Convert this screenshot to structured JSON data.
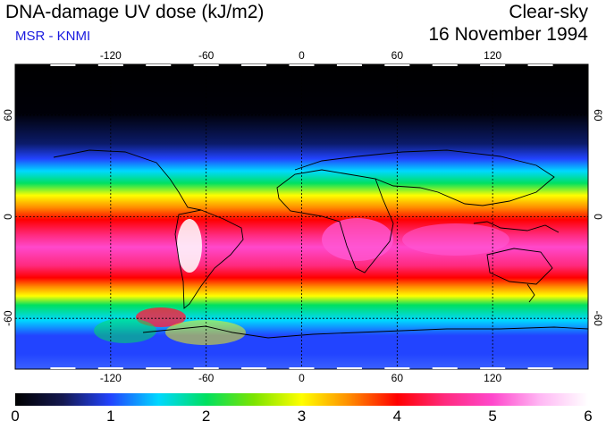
{
  "header": {
    "title": "DNA-damage UV dose (kJ/m2)",
    "credit": "MSR - KNMI",
    "condition": "Clear-sky",
    "date": "16 November 1994"
  },
  "map": {
    "projection": "equirectangular",
    "lon_range": [
      -180,
      180
    ],
    "lat_range": [
      -90,
      90
    ],
    "lon_ticks": [
      -120,
      -60,
      0,
      60,
      120
    ],
    "lat_ticks": [
      60,
      0,
      -60
    ],
    "gridlines": "dotted",
    "coastlines": true
  },
  "colorbar": {
    "min": 0,
    "max": 6,
    "ticks": [
      "0",
      "1",
      "2",
      "3",
      "4",
      "5",
      "6"
    ],
    "colors": [
      "#000000",
      "#141850",
      "#2244ff",
      "#00d8ff",
      "#00e060",
      "#7ce400",
      "#ffff00",
      "#ff8c00",
      "#ff0000",
      "#ff2a7e",
      "#ff48cc",
      "#ffb8f4",
      "#ffffff"
    ]
  }
}
